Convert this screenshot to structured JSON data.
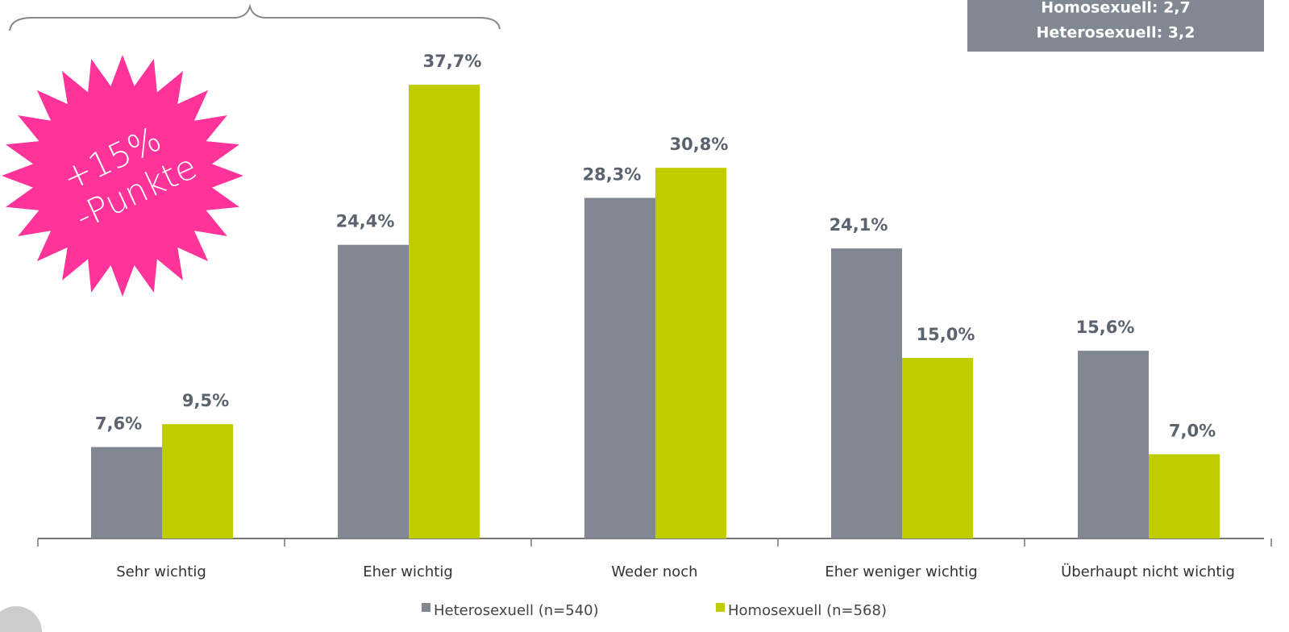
{
  "chart_data": {
    "type": "bar",
    "categories": [
      "Sehr wichtig",
      "Eher wichtig",
      "Weder noch",
      "Eher weniger wichtig",
      "Überhaupt nicht wichtig"
    ],
    "series": [
      {
        "name": "Heterosexuell (n=540)",
        "color": "#818891",
        "values": [
          7.6,
          24.4,
          28.3,
          24.1,
          15.6
        ],
        "value_labels": [
          "7,6%",
          "24,4%",
          "28,3%",
          "24,1%",
          "15,6%"
        ]
      },
      {
        "name": "Homosexuell (n=568)",
        "color": "#bfcc00",
        "values": [
          9.5,
          37.7,
          30.8,
          15.0,
          7.0
        ],
        "value_labels": [
          "9,5%",
          "37,7%",
          "30,8%",
          "15,0%",
          "7,0%"
        ]
      }
    ],
    "info_box": [
      "Homosexuell: 2,7",
      "Heterosexuell: 3,2"
    ],
    "starburst": [
      "+15%",
      "-Punkte"
    ]
  }
}
